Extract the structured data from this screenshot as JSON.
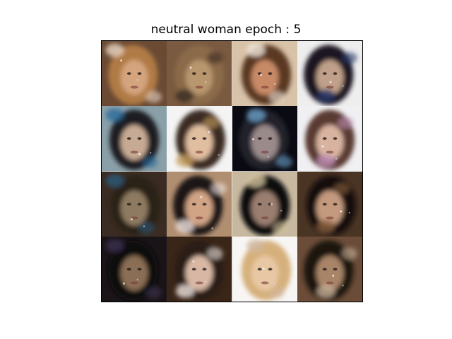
{
  "figure": {
    "title": "neutral woman epoch : 5"
  },
  "grid": {
    "rows": 4,
    "cols": 4,
    "cells": [
      {
        "bg": "#6b4a33",
        "hair": "#b07a45",
        "skin": "#d4a47e",
        "accent": "#e8d6c4"
      },
      {
        "bg": "#7a5a40",
        "hair": "#8a6a48",
        "skin": "#b8966e",
        "accent": "#3a2a22"
      },
      {
        "bg": "#d8c2a8",
        "hair": "#5a3820",
        "skin": "#c88a66",
        "accent": "#f2e8dc"
      },
      {
        "bg": "#eeeeee",
        "hair": "#1a1624",
        "skin": "#c0a08a",
        "accent": "#2a3a6a"
      },
      {
        "bg": "#8aa0a8",
        "hair": "#1c1a20",
        "skin": "#c7aa94",
        "accent": "#2a6a9a"
      },
      {
        "bg": "#f4f4f4",
        "hair": "#3a2a22",
        "skin": "#e0bea0",
        "accent": "#c8a060"
      },
      {
        "bg": "#0a0a12",
        "hair": "#20202a",
        "skin": "#9a8a8a",
        "accent": "#6aa0c8"
      },
      {
        "bg": "#f0f0f2",
        "hair": "#5a3a30",
        "skin": "#d8b4a0",
        "accent": "#c090b8"
      },
      {
        "bg": "#3a2c22",
        "hair": "#2a2018",
        "skin": "#8e7a60",
        "accent": "#2a5a7a"
      },
      {
        "bg": "#b08e70",
        "hair": "#1e1614",
        "skin": "#d2a486",
        "accent": "#f0e4e0"
      },
      {
        "bg": "#c8b8a0",
        "hair": "#0e0c10",
        "skin": "#9a7e70",
        "accent": "#d4c49c"
      },
      {
        "bg": "#4a3424",
        "hair": "#140e0c",
        "skin": "#c49a7e",
        "accent": "#8a6040"
      },
      {
        "bg": "#1a1418",
        "hair": "#0c0a0c",
        "skin": "#8a6e54",
        "accent": "#3a3050"
      },
      {
        "bg": "#3a2618",
        "hair": "#2a1c12",
        "skin": "#d8b8a4",
        "accent": "#eee4e0"
      },
      {
        "bg": "#f8f6f4",
        "hair": "#d6b07c",
        "skin": "#e8c8a4",
        "accent": "#d0b8a0"
      },
      {
        "bg": "#6a4c38",
        "hair": "#1a120c",
        "skin": "#a88468",
        "accent": "#c8b098"
      }
    ]
  }
}
